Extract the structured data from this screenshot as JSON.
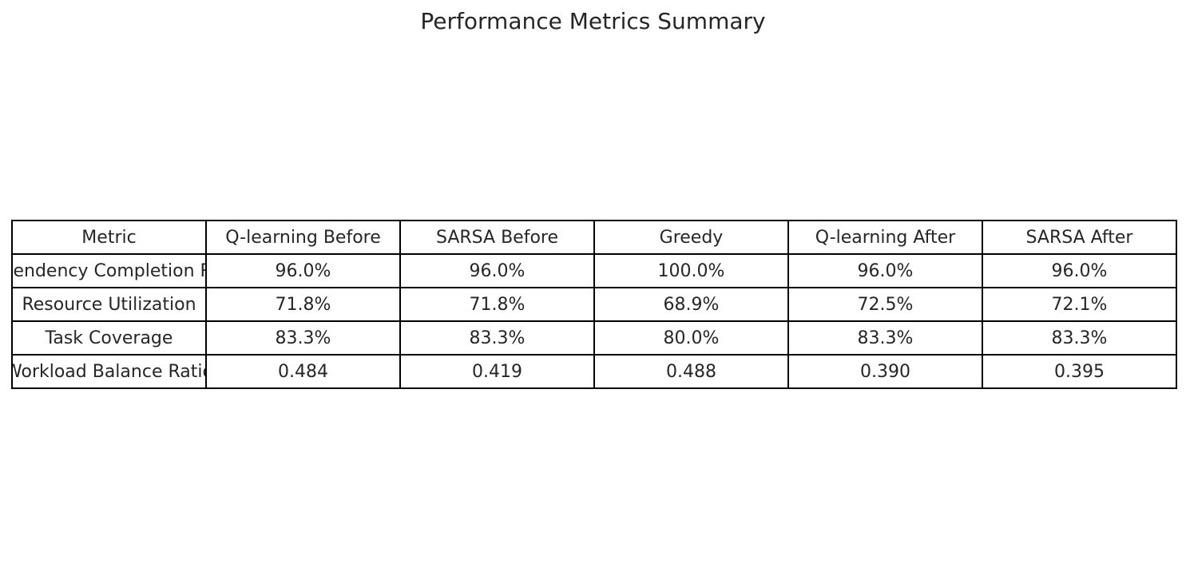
{
  "chart_data": {
    "type": "table",
    "title": "Performance Metrics Summary",
    "columns": [
      "Metric",
      "Q-learning Before",
      "SARSA Before",
      "Greedy",
      "Q-learning After",
      "SARSA After"
    ],
    "rows": [
      [
        "Dependency Completion Rate",
        "96.0%",
        "96.0%",
        "100.0%",
        "96.0%",
        "96.0%"
      ],
      [
        "Resource Utilization",
        "71.8%",
        "71.8%",
        "68.9%",
        "72.5%",
        "72.1%"
      ],
      [
        "Task Coverage",
        "83.3%",
        "83.3%",
        "80.0%",
        "83.3%",
        "83.3%"
      ],
      [
        "Workload Balance Ratio",
        "0.484",
        "0.419",
        "0.488",
        "0.390",
        "0.395"
      ]
    ]
  }
}
